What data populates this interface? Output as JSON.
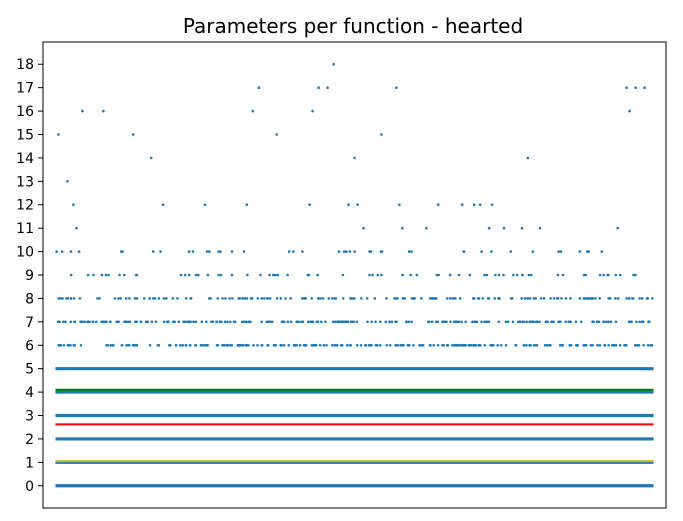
{
  "chart_data": {
    "type": "scatter",
    "title": "Parameters per function - hearted",
    "xlabel": "",
    "ylabel": "",
    "ylim": [
      -0.95,
      18.95
    ],
    "yticks": [
      0,
      1,
      2,
      3,
      4,
      5,
      6,
      7,
      8,
      9,
      10,
      11,
      12,
      13,
      14,
      15,
      16,
      17,
      18
    ],
    "xticks_visible": false,
    "x_range_fraction": [
      0.02,
      0.98
    ],
    "colors": {
      "points": "#1f77b4",
      "mean_line": "#ff0000",
      "upper_line": "#008000",
      "lower_line": "#bcbd22",
      "axes": "#000000"
    },
    "series": [
      {
        "name": "dense_levels",
        "type": "dense_band",
        "y_values": [
          0,
          1,
          2,
          3,
          4,
          5
        ]
      },
      {
        "name": "scatter_6",
        "y": 6,
        "density": 0.95
      },
      {
        "name": "scatter_7",
        "y": 7,
        "density": 0.85
      },
      {
        "name": "scatter_8",
        "y": 8,
        "density": 0.6
      },
      {
        "name": "scatter_9",
        "y": 9,
        "density": 0.25
      },
      {
        "name": "scatter_10",
        "y": 10,
        "density": 0.16
      },
      {
        "name": "scatter_sparse",
        "type": "points",
        "x": [
          0.005,
          0.02,
          0.03,
          0.035,
          0.045,
          0.08,
          0.13,
          0.16,
          0.18,
          0.25,
          0.32,
          0.33,
          0.34,
          0.37,
          0.425,
          0.43,
          0.44,
          0.455,
          0.465,
          0.49,
          0.5,
          0.505,
          0.515,
          0.545,
          0.57,
          0.575,
          0.58,
          0.62,
          0.64,
          0.68,
          0.7,
          0.71,
          0.725,
          0.73,
          0.75,
          0.79,
          0.78,
          0.81,
          0.94,
          0.955,
          0.96,
          0.97,
          0.985
        ],
        "y": [
          15,
          13,
          12,
          11,
          16,
          16,
          15,
          14,
          12,
          12,
          12,
          16,
          17,
          15,
          12,
          16,
          17,
          17,
          18,
          12,
          14,
          12,
          11,
          15,
          17,
          12,
          11,
          11,
          12,
          12,
          12,
          12,
          11,
          12,
          11,
          14,
          11,
          11,
          11,
          17,
          16,
          17,
          17
        ]
      }
    ],
    "hlines": [
      {
        "name": "upper",
        "y": 4.1
      },
      {
        "name": "mean",
        "y": 2.62
      },
      {
        "name": "lower",
        "y": 1.05
      }
    ]
  }
}
